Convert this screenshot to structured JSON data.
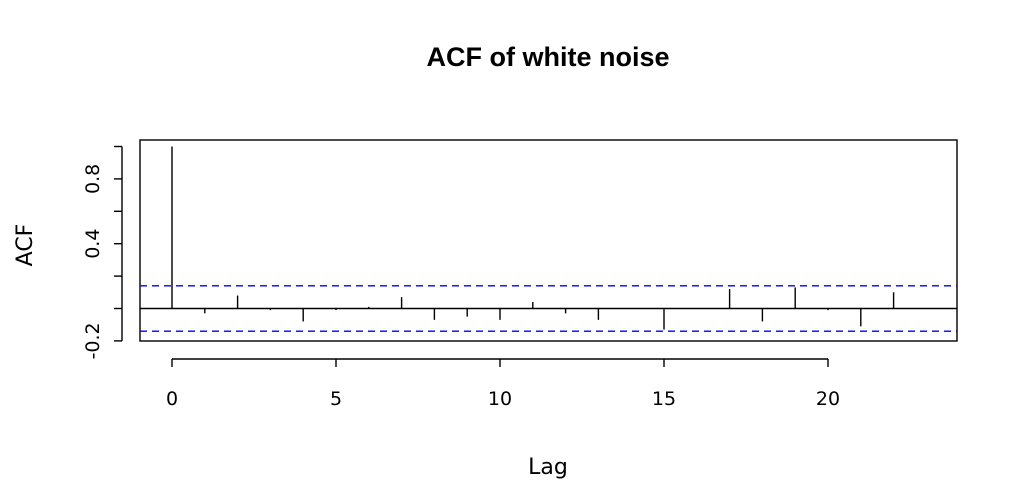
{
  "chart_data": {
    "type": "bar",
    "title": "ACF of white noise",
    "xlabel": "Lag",
    "ylabel": "ACF",
    "xlim": [
      -1,
      24
    ],
    "ylim": [
      -0.2,
      1.0
    ],
    "x_ticks": [
      0,
      5,
      10,
      15,
      20
    ],
    "x_tick_labels": [
      "0",
      "5",
      "10",
      "15",
      "20"
    ],
    "y_ticks": [
      -0.2,
      0.0,
      0.2,
      0.4,
      0.6,
      0.8,
      1.0
    ],
    "y_tick_labels": [
      "-0.2",
      "",
      "",
      "0.4",
      "",
      "0.8",
      ""
    ],
    "confidence_bound": 0.14,
    "confidence_color": "#0000ff",
    "grid": false,
    "series": [
      {
        "x": [
          0,
          1,
          2,
          3,
          4,
          5,
          6,
          7,
          8,
          9,
          10,
          11,
          12,
          13,
          14,
          15,
          16,
          17,
          18,
          19,
          20,
          21,
          22,
          23
        ],
        "values": [
          1.0,
          -0.03,
          0.08,
          -0.01,
          -0.08,
          -0.01,
          0.01,
          0.07,
          -0.07,
          -0.05,
          -0.07,
          0.04,
          -0.03,
          -0.07,
          0.0,
          -0.13,
          0.0,
          0.12,
          -0.08,
          0.13,
          -0.01,
          -0.11,
          0.1,
          0.0
        ]
      }
    ]
  }
}
